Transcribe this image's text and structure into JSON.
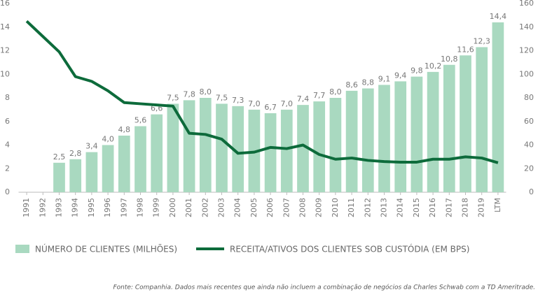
{
  "chart_data": {
    "type": "bar-line",
    "categories": [
      "1991",
      "1992",
      "1993",
      "1994",
      "1995",
      "1996",
      "1997",
      "1998",
      "1999",
      "2000",
      "2001",
      "2002",
      "2003",
      "2004",
      "2005",
      "2006",
      "2007",
      "2008",
      "2009",
      "2010",
      "2011",
      "2012",
      "2013",
      "2014",
      "2015",
      "2016",
      "2017",
      "2018",
      "2019",
      "LTM"
    ],
    "series": [
      {
        "name": "NÚMERO DE CLIENTES (MILHÕES)",
        "type": "bar",
        "color": "#a9d9c0",
        "values": [
          null,
          null,
          2.5,
          2.8,
          3.4,
          4.0,
          4.8,
          5.6,
          6.6,
          7.5,
          7.8,
          8.0,
          7.5,
          7.3,
          7.0,
          6.7,
          7.0,
          7.4,
          7.7,
          8.0,
          8.6,
          8.8,
          9.1,
          9.4,
          9.8,
          10.2,
          10.8,
          11.6,
          12.3,
          14.4
        ],
        "value_labels": [
          null,
          null,
          "2,5",
          "2,8",
          "3,4",
          "4,0",
          "4,8",
          "5,6",
          "6,6",
          "7,5",
          "7,8",
          "8,0",
          "7,5",
          "7,3",
          "7,0",
          "6,7",
          "7,0",
          "7,4",
          "7,7",
          "8,0",
          "8,6",
          "8,8",
          "9,1",
          "9,4",
          "9,8",
          "10,2",
          "10,8",
          "11,6",
          "12,3",
          "14,4"
        ]
      },
      {
        "name": "RECEITA/ATIVOS DOS CLIENTES SOB CUSTÓDIA (EM BPS)",
        "type": "line",
        "axis": "y2",
        "color": "#0d6b3b",
        "values": [
          145,
          132,
          119,
          98,
          94,
          86,
          76,
          75,
          74,
          73,
          50,
          49,
          45,
          33,
          34,
          38,
          37,
          40,
          32,
          28,
          29,
          27,
          26,
          25.5,
          25.5,
          28,
          28,
          30,
          29,
          25
        ]
      }
    ],
    "ylim": [
      0,
      16
    ],
    "yticks": [
      0,
      2,
      4,
      6,
      8,
      10,
      12,
      14,
      16
    ],
    "y2lim": [
      0,
      160
    ],
    "y2ticks": [
      0,
      20,
      40,
      60,
      80,
      100,
      120,
      140,
      160
    ],
    "footnote": "Fonte: Companhia. Dados mais recentes que ainda não incluem a combinação de negócios da Charles Schwab com a TD Ameritrade."
  }
}
